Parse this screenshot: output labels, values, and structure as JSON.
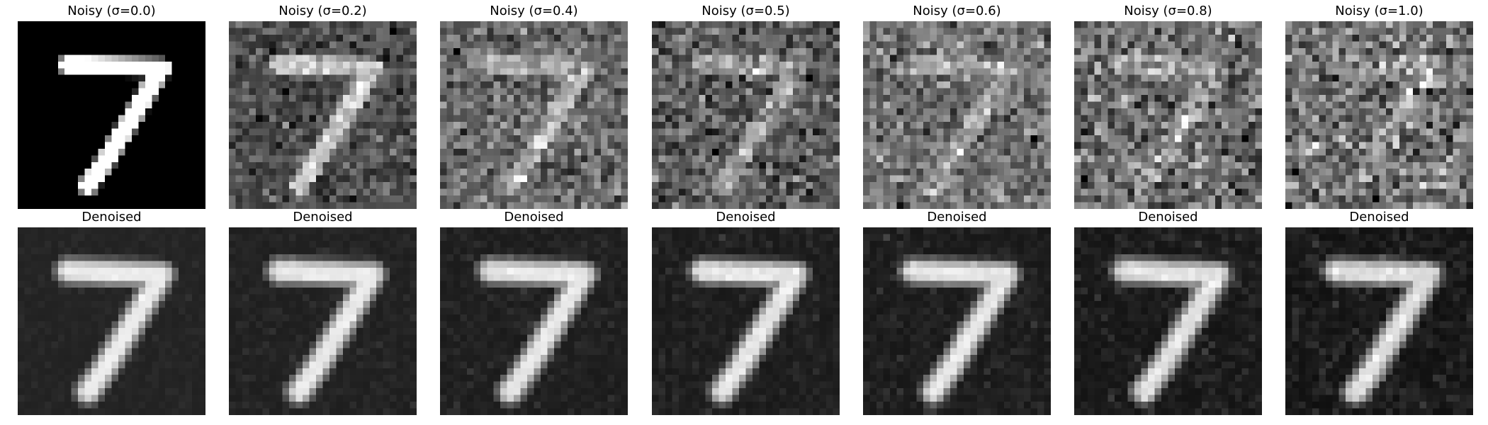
{
  "figure": {
    "columns": [
      {
        "noisy_title": "Noisy (σ=0.0)",
        "denoised_title": "Denoised",
        "sigma": 0.0
      },
      {
        "noisy_title": "Noisy (σ=0.2)",
        "denoised_title": "Denoised",
        "sigma": 0.2
      },
      {
        "noisy_title": "Noisy (σ=0.4)",
        "denoised_title": "Denoised",
        "sigma": 0.4
      },
      {
        "noisy_title": "Noisy (σ=0.5)",
        "denoised_title": "Denoised",
        "sigma": 0.5
      },
      {
        "noisy_title": "Noisy (σ=0.6)",
        "denoised_title": "Denoised",
        "sigma": 0.6
      },
      {
        "noisy_title": "Noisy (σ=0.8)",
        "denoised_title": "Denoised",
        "sigma": 0.8
      },
      {
        "noisy_title": "Noisy (σ=1.0)",
        "denoised_title": "Denoised",
        "sigma": 1.0
      }
    ],
    "colormap": "gray",
    "digit": "7"
  }
}
